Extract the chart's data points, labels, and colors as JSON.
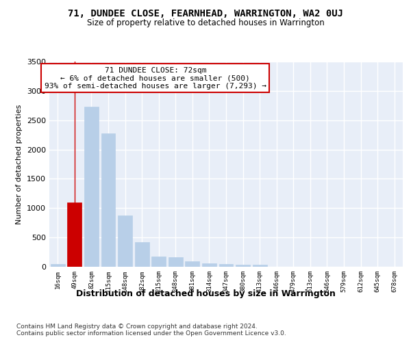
{
  "title": "71, DUNDEE CLOSE, FEARNHEAD, WARRINGTON, WA2 0UJ",
  "subtitle": "Size of property relative to detached houses in Warrington",
  "xlabel": "Distribution of detached houses by size in Warrington",
  "ylabel": "Number of detached properties",
  "bar_labels": [
    "16sqm",
    "49sqm",
    "82sqm",
    "115sqm",
    "148sqm",
    "182sqm",
    "215sqm",
    "248sqm",
    "281sqm",
    "314sqm",
    "347sqm",
    "380sqm",
    "413sqm",
    "446sqm",
    "479sqm",
    "513sqm",
    "546sqm",
    "579sqm",
    "612sqm",
    "645sqm",
    "678sqm"
  ],
  "bar_values": [
    50,
    1100,
    2730,
    2270,
    870,
    415,
    170,
    160,
    90,
    60,
    50,
    40,
    30,
    0,
    0,
    0,
    0,
    0,
    0,
    0,
    0
  ],
  "bar_color_default": "#b8cfe8",
  "bar_color_highlight": "#cc0000",
  "highlight_index": 1,
  "annotation_text": "71 DUNDEE CLOSE: 72sqm\n← 6% of detached houses are smaller (500)\n93% of semi-detached houses are larger (7,293) →",
  "annotation_box_color": "#cc0000",
  "vline_color": "#cc0000",
  "ylim": [
    0,
    3500
  ],
  "yticks": [
    0,
    500,
    1000,
    1500,
    2000,
    2500,
    3000,
    3500
  ],
  "bg_color": "#e8eef8",
  "grid_color": "#ffffff",
  "footnote1": "Contains HM Land Registry data © Crown copyright and database right 2024.",
  "footnote2": "Contains public sector information licensed under the Open Government Licence v3.0."
}
